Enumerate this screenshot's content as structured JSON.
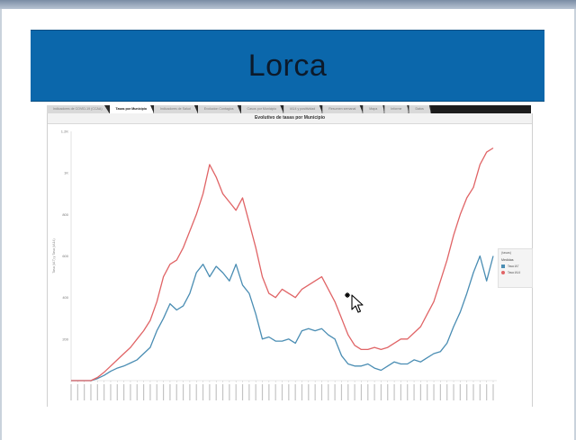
{
  "slide": {
    "title": "Lorca"
  },
  "tabs": [
    "Indicadores de COVID-19 (CCAA)",
    "Tasas por Municipio",
    "Indicadores de Salud",
    "Evolucion Contagios",
    "Casos por Municipio",
    "IA14 y positividad",
    "Resumen semanal",
    "Mapa",
    "Informe",
    "Datos"
  ],
  "active_tab": 1,
  "colors": {
    "title_band": "#0b67ab",
    "series_blue": "#4a8db3",
    "series_red": "#e06466"
  },
  "chart_data": {
    "type": "line",
    "title": "Evolutivo de tasas por Municipio",
    "ylabel": "Tasa (IA7) y Tasa (IA14)",
    "ylim": [
      0,
      1200
    ],
    "yticks": [
      200,
      400,
      600,
      800,
      1000,
      1200
    ],
    "ytick_labels": [
      "200",
      "400",
      "600",
      "800",
      "1K",
      "1.2K"
    ],
    "grid": false,
    "legend": {
      "placement": "right",
      "title": "(tasas)",
      "subtitle": "Medidas",
      "entries": [
        "Tasa IA7",
        "Tasa IA14"
      ]
    },
    "x_count": 65,
    "series": [
      {
        "name": "Tasa IA7",
        "color": "#4a8db3",
        "values": [
          0,
          0,
          0,
          0,
          10,
          25,
          45,
          60,
          70,
          85,
          100,
          130,
          160,
          240,
          300,
          370,
          340,
          360,
          420,
          520,
          560,
          500,
          550,
          520,
          480,
          560,
          460,
          420,
          320,
          200,
          210,
          190,
          190,
          200,
          180,
          240,
          250,
          240,
          250,
          220,
          200,
          120,
          80,
          70,
          70,
          80,
          60,
          50,
          70,
          90,
          80,
          80,
          100,
          90,
          110,
          130,
          140,
          180,
          260,
          330,
          420,
          520,
          600,
          480,
          600
        ]
      },
      {
        "name": "Tasa IA14",
        "color": "#e06466",
        "values": [
          0,
          0,
          0,
          0,
          15,
          40,
          70,
          100,
          130,
          160,
          200,
          240,
          290,
          380,
          500,
          560,
          580,
          640,
          720,
          800,
          900,
          1040,
          980,
          900,
          860,
          820,
          880,
          760,
          640,
          500,
          420,
          400,
          440,
          420,
          400,
          440,
          460,
          480,
          500,
          440,
          380,
          300,
          220,
          170,
          150,
          150,
          160,
          150,
          160,
          180,
          200,
          200,
          230,
          260,
          320,
          380,
          480,
          580,
          700,
          800,
          880,
          930,
          1040,
          1100,
          1120
        ]
      }
    ],
    "annotation": "cursor-over-line"
  }
}
